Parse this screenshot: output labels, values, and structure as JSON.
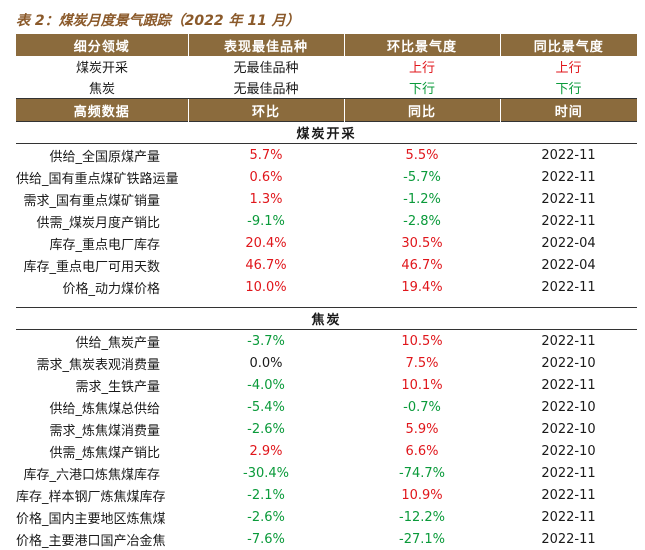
{
  "caption": "表 2：煤炭月度景气跟踪（2022 年 11 月）",
  "colors": {
    "header_bg": "#8b6b3d",
    "caption": "#8b5a2b",
    "up": "#e0161b",
    "down": "#0a9a3a"
  },
  "top_table": {
    "headers": [
      "细分领域",
      "表现最佳品种",
      "环比景气度",
      "同比景气度"
    ],
    "rows": [
      {
        "segment": "煤炭开采",
        "best": "无最佳品种",
        "mom": "上行",
        "mom_color": "red",
        "yoy": "上行",
        "yoy_color": "red"
      },
      {
        "segment": "焦炭",
        "best": "无最佳品种",
        "mom": "下行",
        "mom_color": "green",
        "yoy": "下行",
        "yoy_color": "green"
      }
    ]
  },
  "hf_table": {
    "headers": [
      "高频数据",
      "环比",
      "同比",
      "时间"
    ],
    "sections": [
      {
        "title": "煤炭开采",
        "rows": [
          {
            "name": "供给_全国原煤产量",
            "mom": "5.7%",
            "mom_color": "red",
            "yoy": "5.5%",
            "yoy_color": "red",
            "time": "2022-11"
          },
          {
            "name": "供给_国有重点煤矿铁路运量",
            "mom": "0.6%",
            "mom_color": "red",
            "yoy": "-5.7%",
            "yoy_color": "green",
            "time": "2022-11"
          },
          {
            "name": "需求_国有重点煤矿销量",
            "mom": "1.3%",
            "mom_color": "red",
            "yoy": "-1.2%",
            "yoy_color": "green",
            "time": "2022-11"
          },
          {
            "name": "供需_煤炭月度产销比",
            "mom": "-9.1%",
            "mom_color": "green",
            "yoy": "-2.8%",
            "yoy_color": "green",
            "time": "2022-11"
          },
          {
            "name": "库存_重点电厂库存",
            "mom": "20.4%",
            "mom_color": "red",
            "yoy": "30.5%",
            "yoy_color": "red",
            "time": "2022-04"
          },
          {
            "name": "库存_重点电厂可用天数",
            "mom": "46.7%",
            "mom_color": "red",
            "yoy": "46.7%",
            "yoy_color": "red",
            "time": "2022-04"
          },
          {
            "name": "价格_动力煤价格",
            "mom": "10.0%",
            "mom_color": "red",
            "yoy": "19.4%",
            "yoy_color": "red",
            "time": "2022-11"
          }
        ]
      },
      {
        "title": "焦炭",
        "rows": [
          {
            "name": "供给_焦炭产量",
            "mom": "-3.7%",
            "mom_color": "green",
            "yoy": "10.5%",
            "yoy_color": "red",
            "time": "2022-11"
          },
          {
            "name": "需求_焦炭表观消费量",
            "mom": "0.0%",
            "mom_color": "black",
            "yoy": "7.5%",
            "yoy_color": "red",
            "time": "2022-10"
          },
          {
            "name": "需求_生铁产量",
            "mom": "-4.0%",
            "mom_color": "green",
            "yoy": "10.1%",
            "yoy_color": "red",
            "time": "2022-11"
          },
          {
            "name": "供给_炼焦煤总供给",
            "mom": "-5.4%",
            "mom_color": "green",
            "yoy": "-0.7%",
            "yoy_color": "green",
            "time": "2022-10"
          },
          {
            "name": "需求_炼焦煤消费量",
            "mom": "-2.6%",
            "mom_color": "green",
            "yoy": "5.9%",
            "yoy_color": "red",
            "time": "2022-10"
          },
          {
            "name": "供需_炼焦煤产销比",
            "mom": "2.9%",
            "mom_color": "red",
            "yoy": "6.6%",
            "yoy_color": "red",
            "time": "2022-10"
          },
          {
            "name": "库存_六港口炼焦煤库存",
            "mom": "-30.4%",
            "mom_color": "green",
            "yoy": "-74.7%",
            "yoy_color": "green",
            "time": "2022-11"
          },
          {
            "name": "库存_样本钢厂炼焦煤库存",
            "mom": "-2.1%",
            "mom_color": "green",
            "yoy": "10.9%",
            "yoy_color": "red",
            "time": "2022-11"
          },
          {
            "name": "价格_国内主要地区炼焦煤",
            "mom": "-2.6%",
            "mom_color": "green",
            "yoy": "-12.2%",
            "yoy_color": "green",
            "time": "2022-11"
          },
          {
            "name": "价格_主要港口国产冶金焦",
            "mom": "-7.6%",
            "mom_color": "green",
            "yoy": "-27.1%",
            "yoy_color": "green",
            "time": "2022-11"
          }
        ]
      }
    ]
  }
}
